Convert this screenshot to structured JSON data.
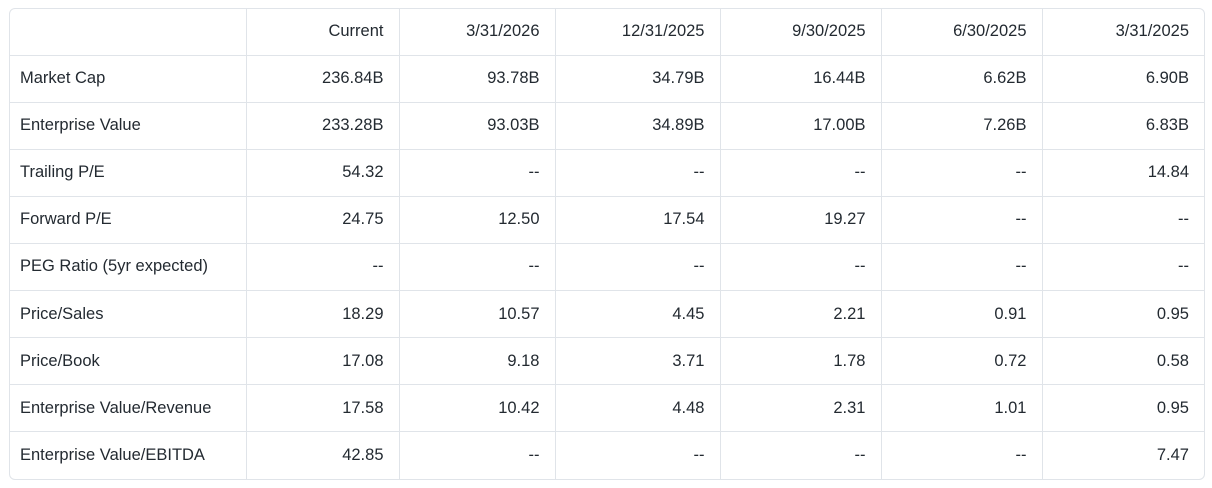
{
  "table": {
    "headers": [
      "",
      "Current",
      "3/31/2026",
      "12/31/2025",
      "9/30/2025",
      "6/30/2025",
      "3/31/2025"
    ],
    "rows": [
      {
        "label": "Market Cap",
        "values": [
          "236.84B",
          "93.78B",
          "34.79B",
          "16.44B",
          "6.62B",
          "6.90B"
        ]
      },
      {
        "label": "Enterprise Value",
        "values": [
          "233.28B",
          "93.03B",
          "34.89B",
          "17.00B",
          "7.26B",
          "6.83B"
        ]
      },
      {
        "label": "Trailing P/E",
        "values": [
          "54.32",
          "--",
          "--",
          "--",
          "--",
          "14.84"
        ]
      },
      {
        "label": "Forward P/E",
        "values": [
          "24.75",
          "12.50",
          "17.54",
          "19.27",
          "--",
          "--"
        ]
      },
      {
        "label": "PEG Ratio (5yr expected)",
        "values": [
          "--",
          "--",
          "--",
          "--",
          "--",
          "--"
        ]
      },
      {
        "label": "Price/Sales",
        "values": [
          "18.29",
          "10.57",
          "4.45",
          "2.21",
          "0.91",
          "0.95"
        ]
      },
      {
        "label": "Price/Book",
        "values": [
          "17.08",
          "9.18",
          "3.71",
          "1.78",
          "0.72",
          "0.58"
        ]
      },
      {
        "label": "Enterprise Value/Revenue",
        "values": [
          "17.58",
          "10.42",
          "4.48",
          "2.31",
          "1.01",
          "0.95"
        ]
      },
      {
        "label": "Enterprise Value/EBITDA",
        "values": [
          "42.85",
          "--",
          "--",
          "--",
          "--",
          "7.47"
        ]
      }
    ]
  }
}
